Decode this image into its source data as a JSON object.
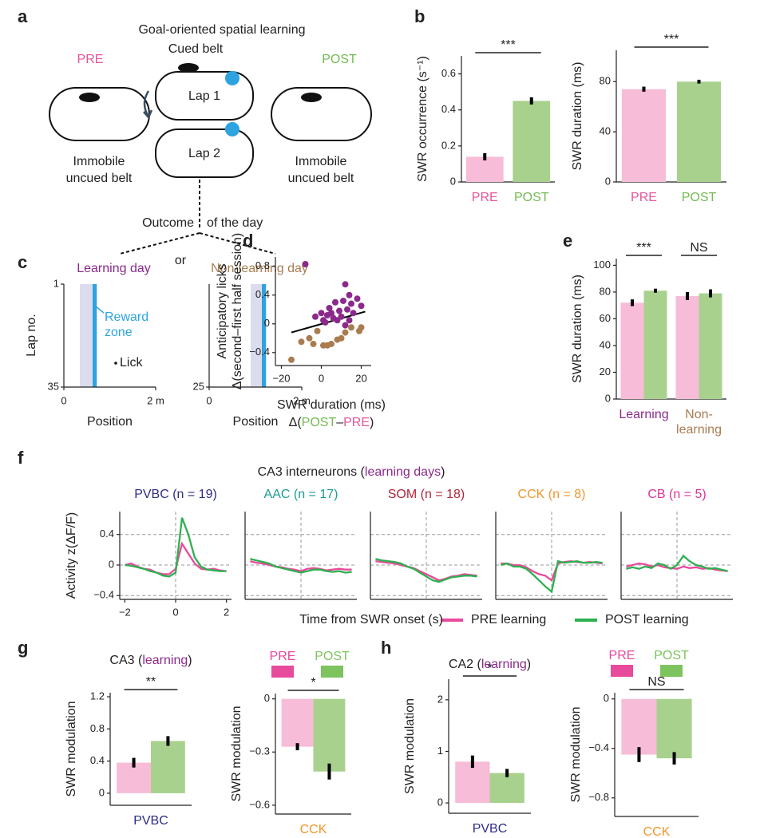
{
  "panel_labels": [
    "a",
    "b",
    "c",
    "d",
    "e",
    "f",
    "g",
    "h"
  ],
  "schematic": {
    "title": "Goal-oriented spatial learning",
    "pre": "PRE",
    "post": "POST",
    "cued_belt": "Cued belt",
    "lap1": "Lap 1",
    "lap2": "Lap 2",
    "pre_belt": [
      "Immobile",
      "uncued belt"
    ],
    "post_belt": [
      "Immobile",
      "uncued belt"
    ],
    "outcome": "Outcome",
    "of_the_day": "of the day",
    "or": "or"
  },
  "raster": {
    "ylabel": "Lap no.",
    "reward_zone": [
      "Reward",
      "zone"
    ],
    "lick": "Lick",
    "learning": {
      "title": "Learning day",
      "ylim": [
        1,
        35
      ],
      "yticks": [
        1,
        35
      ],
      "xlim": [
        0,
        2
      ],
      "xticks": [
        0,
        {
          "value": 2,
          "label": "2 m"
        }
      ],
      "xlabel": "Position"
    },
    "nonlearning": {
      "title": "Non-learning day",
      "ylim": [
        1,
        25
      ],
      "yticks": [
        25
      ],
      "xlim": [
        0,
        2
      ],
      "xticks": [
        0,
        {
          "value": 2,
          "label": "2 m"
        }
      ],
      "xlabel": "Position"
    }
  },
  "panel_f": {
    "title_parts": [
      "CA3 interneurons (",
      "learning days",
      ")"
    ],
    "title_colors": [
      "#222",
      "#8b2a8b",
      "#222"
    ],
    "xlabel": "Time from SWR onset (s)"
  },
  "chart_data": [
    {
      "type": "bar",
      "ylabel": "SWR occurrence (s⁻¹)",
      "categories": [
        "PRE",
        "POST"
      ],
      "values": [
        0.14,
        0.45
      ],
      "errors": [
        0.02,
        0.02
      ],
      "colors": [
        "#f7bcd7",
        "#a9d18e"
      ],
      "label_colors": [
        "#e6559b",
        "#72bb53"
      ],
      "ylim": [
        0,
        0.7
      ],
      "yticks": [
        0,
        0.2,
        0.4,
        0.6
      ],
      "significance": "***"
    },
    {
      "type": "bar",
      "ylabel": "SWR duration (ms)",
      "categories": [
        "PRE",
        "POST"
      ],
      "values": [
        74,
        80
      ],
      "errors": [
        2,
        1.5
      ],
      "colors": [
        "#f7bcd7",
        "#a9d18e"
      ],
      "label_colors": [
        "#e6559b",
        "#72bb53"
      ],
      "ylim": [
        0,
        105
      ],
      "yticks": [
        0,
        40,
        80
      ],
      "significance": "***"
    },
    {
      "type": "scatter",
      "ylabel": [
        "Anticipatory licks",
        "Δ(second–first half session)"
      ],
      "xlabel": "SWR duration (ms)",
      "xlabel_parts": [
        "Δ(",
        "POST",
        "–",
        "PRE",
        ")"
      ],
      "xlabel_colors": [
        "#222",
        "#72bb53",
        "#222",
        "#e6559b",
        "#222"
      ],
      "xlim": [
        -23,
        25
      ],
      "xticks": [
        {
          "value": -20,
          "label": "−20"
        },
        0,
        20
      ],
      "ylim": [
        -0.58,
        0.93
      ],
      "yticks": [
        {
          "value": -0.4,
          "label": "−0.4"
        },
        0,
        0.4,
        0.8
      ],
      "series": [
        {
          "color": "#8b2a8b",
          "x": [
            -8,
            -3,
            0,
            1,
            2,
            3,
            4,
            5,
            6,
            7,
            8,
            9,
            10,
            11,
            12,
            13,
            14,
            15,
            16,
            18,
            12,
            14,
            20
          ],
          "values": [
            0.83,
            0.1,
            0.15,
            0.05,
            0.02,
            0.12,
            0.22,
            0.15,
            0.08,
            0.3,
            0.05,
            0.18,
            0.1,
            0.32,
            0.55,
            0.2,
            0.4,
            0.28,
            0.15,
            0.35,
            -0.02,
            0.05,
            0.25
          ]
        },
        {
          "color": "#a97c50",
          "x": [
            -15,
            -10,
            -6,
            -4,
            -2,
            1,
            3,
            5,
            8,
            10,
            12,
            15,
            19,
            20
          ],
          "values": [
            -0.5,
            -0.25,
            -0.2,
            -0.28,
            -0.1,
            -0.3,
            -0.3,
            -0.28,
            -0.22,
            -0.2,
            -0.12,
            -0.05,
            -0.1,
            -0.05
          ]
        }
      ],
      "fit": {
        "x": [
          -15,
          22
        ],
        "y": [
          -0.12,
          0.17
        ]
      }
    },
    {
      "type": "bar",
      "ylabel": "SWR duration (ms)",
      "categories": [
        [
          "Learning"
        ],
        [
          "Non-",
          "learning"
        ]
      ],
      "label_colors": [
        "#8b2a8b",
        "#a97c50"
      ],
      "series": [
        {
          "color": "#f7bcd7",
          "values": [
            72,
            77
          ],
          "errors": [
            2.5,
            3
          ]
        },
        {
          "color": "#a9d18e",
          "values": [
            81,
            79
          ],
          "errors": [
            1.5,
            3
          ]
        }
      ],
      "ylim": [
        0,
        105
      ],
      "yticks": [
        0,
        20,
        40,
        60,
        80,
        100
      ],
      "significance": [
        "***",
        "NS"
      ]
    },
    {
      "type": "line",
      "title": "PVBC (n = 19)",
      "title_color": "#2b2c86",
      "ylabel": "Activity z(ΔF/F)",
      "x": [
        -2,
        -1.75,
        -1.5,
        -1.25,
        -1,
        -0.75,
        -0.5,
        -0.25,
        0,
        0.25,
        0.5,
        0.75,
        1,
        1.25,
        1.5,
        1.75,
        2
      ],
      "xlim": [
        -2.2,
        2.2
      ],
      "xticks": [
        {
          "value": -2,
          "label": "−2"
        },
        0,
        2
      ],
      "ylim": [
        -0.45,
        0.7
      ],
      "yticks": [
        {
          "value": -0.4,
          "label": "−0.4"
        },
        0,
        0.4
      ],
      "ytick_labels": true,
      "grid": true,
      "vline": 0,
      "legend": true,
      "series": [
        {
          "name": "PRE learning",
          "color": "#e84a9c",
          "values": [
            0,
            0.02,
            -0.02,
            -0.05,
            -0.06,
            -0.1,
            -0.12,
            -0.12,
            -0.05,
            0.28,
            0.15,
            0.02,
            -0.05,
            -0.06,
            -0.05,
            -0.07,
            -0.08
          ]
        },
        {
          "name": "POST learning",
          "color": "#2eb04f",
          "values": [
            0,
            -0.01,
            -0.03,
            -0.05,
            -0.08,
            -0.1,
            -0.14,
            -0.15,
            -0.1,
            0.62,
            0.4,
            0.1,
            -0.02,
            -0.06,
            -0.07,
            -0.08,
            -0.08
          ]
        }
      ]
    },
    {
      "type": "line",
      "title": "AAC (n = 17)",
      "title_color": "#1a9e8f",
      "x": [
        -2,
        -1.75,
        -1.5,
        -1.25,
        -1,
        -0.75,
        -0.5,
        -0.25,
        0,
        0.25,
        0.5,
        0.75,
        1,
        1.25,
        1.5,
        1.75,
        2
      ],
      "xlim": [
        -2.2,
        2.2
      ],
      "ylim": [
        -0.45,
        0.7
      ],
      "yticks": [
        -0.4,
        0,
        0.4
      ],
      "grid": true,
      "vline": 0,
      "series": [
        {
          "color": "#e84a9c",
          "values": [
            0.05,
            0.03,
            0.02,
            0,
            -0.02,
            -0.03,
            -0.05,
            -0.06,
            -0.08,
            -0.05,
            -0.04,
            -0.05,
            -0.07,
            -0.06,
            -0.05,
            -0.06,
            -0.06
          ]
        },
        {
          "color": "#2eb04f",
          "values": [
            0.08,
            0.06,
            0.04,
            0.02,
            -0.02,
            -0.04,
            -0.06,
            -0.08,
            -0.1,
            -0.08,
            -0.06,
            -0.06,
            -0.08,
            -0.09,
            -0.08,
            -0.1,
            -0.09
          ]
        }
      ]
    },
    {
      "type": "line",
      "title": "SOM (n = 18)",
      "title_color": "#b3243a",
      "x": [
        -2,
        -1.75,
        -1.5,
        -1.25,
        -1,
        -0.75,
        -0.5,
        -0.25,
        0,
        0.25,
        0.5,
        0.75,
        1,
        1.25,
        1.5,
        1.75,
        2
      ],
      "xlim": [
        -2.2,
        2.2
      ],
      "ylim": [
        -0.45,
        0.7
      ],
      "yticks": [
        -0.4,
        0,
        0.4
      ],
      "grid": true,
      "vline": 0,
      "series": [
        {
          "color": "#e84a9c",
          "values": [
            0.05,
            0.04,
            0.03,
            0.02,
            0,
            -0.02,
            -0.04,
            -0.08,
            -0.12,
            -0.16,
            -0.2,
            -0.18,
            -0.15,
            -0.14,
            -0.12,
            -0.13,
            -0.14
          ]
        },
        {
          "color": "#2eb04f",
          "values": [
            0.08,
            0.06,
            0.05,
            0.04,
            0.02,
            -0.02,
            -0.05,
            -0.1,
            -0.15,
            -0.2,
            -0.22,
            -0.19,
            -0.16,
            -0.15,
            -0.14,
            -0.14,
            -0.15
          ]
        }
      ]
    },
    {
      "type": "line",
      "title": "CCK (n = 8)",
      "title_color": "#f0962c",
      "x": [
        -2,
        -1.75,
        -1.5,
        -1.25,
        -1,
        -0.75,
        -0.5,
        -0.25,
        0,
        0.25,
        0.5,
        0.75,
        1,
        1.25,
        1.5,
        1.75,
        2
      ],
      "xlim": [
        -2.2,
        2.2
      ],
      "ylim": [
        -0.45,
        0.7
      ],
      "yticks": [
        -0.4,
        0,
        0.4
      ],
      "grid": true,
      "vline": 0,
      "series": [
        {
          "color": "#e84a9c",
          "values": [
            0.02,
            0.02,
            0,
            0,
            -0.03,
            -0.08,
            -0.12,
            -0.14,
            -0.2,
            0.02,
            0.04,
            0.05,
            0.04,
            0.03,
            0.04,
            0.03,
            0.02
          ]
        },
        {
          "color": "#2eb04f",
          "values": [
            0,
            0.02,
            -0.02,
            -0.02,
            -0.05,
            -0.12,
            -0.2,
            -0.28,
            -0.35,
            0.05,
            0.03,
            0.04,
            0.05,
            0.03,
            0.03,
            0.04,
            0.03
          ]
        }
      ]
    },
    {
      "type": "line",
      "title": "CB (n = 5)",
      "title_color": "#e0339a",
      "x": [
        -2,
        -1.75,
        -1.5,
        -1.25,
        -1,
        -0.75,
        -0.5,
        -0.25,
        0,
        0.25,
        0.5,
        0.75,
        1,
        1.25,
        1.5,
        1.75,
        2
      ],
      "xlim": [
        -2.2,
        2.2
      ],
      "ylim": [
        -0.45,
        0.7
      ],
      "yticks": [
        -0.4,
        0,
        0.4
      ],
      "grid": true,
      "vline": 0,
      "series": [
        {
          "color": "#e84a9c",
          "values": [
            -0.02,
            0,
            0.02,
            0.01,
            -0.02,
            0,
            -0.03,
            -0.04,
            -0.05,
            -0.02,
            -0.04,
            -0.03,
            -0.05,
            -0.04,
            -0.06,
            -0.07,
            -0.08
          ]
        },
        {
          "color": "#2eb04f",
          "values": [
            -0.05,
            -0.03,
            -0.05,
            -0.02,
            -0.04,
            0.02,
            0,
            -0.05,
            0,
            0.12,
            0.05,
            0,
            -0.02,
            -0.05,
            -0.04,
            -0.06,
            -0.08
          ]
        }
      ]
    },
    {
      "type": "bar",
      "title_parts": [
        "CA3 (",
        "learning",
        ")"
      ],
      "title_colors": [
        "#222",
        "#8b2a8b",
        "#222"
      ],
      "ylabel": "SWR modulation",
      "categories": [
        "PVBC"
      ],
      "label_colors": [
        "#2b2c86"
      ],
      "series": [
        {
          "color": "#f7bcd7",
          "values": [
            0.38
          ],
          "errors": [
            0.06
          ]
        },
        {
          "color": "#a9d18e",
          "values": [
            0.65
          ],
          "errors": [
            0.06
          ]
        }
      ],
      "ylim": [
        -0.15,
        1.25
      ],
      "yticks": [
        0,
        0.4,
        0.8,
        1.2
      ],
      "significance": "**"
    },
    {
      "type": "bar",
      "ylabel": "SWR modulation",
      "categories": [
        "CCK"
      ],
      "label_colors": [
        "#f0962c"
      ],
      "legend": true,
      "legend_colors": [
        "#e84a9c",
        "#7dc35e"
      ],
      "series": [
        {
          "name": "PRE",
          "color": "#f7bcd7",
          "values": [
            -0.27
          ],
          "errors": [
            0.02
          ]
        },
        {
          "name": "POST",
          "color": "#a9d18e",
          "values": [
            -0.41
          ],
          "errors": [
            0.045
          ]
        }
      ],
      "ylim": [
        -0.65,
        0.03
      ],
      "yticks": [
        0,
        {
          "value": -0.3,
          "label": "−0.3"
        },
        {
          "value": -0.6,
          "label": "−0.6"
        }
      ],
      "significance": "*"
    },
    {
      "type": "bar",
      "title_parts": [
        "CA2 (",
        "learning",
        ")"
      ],
      "title_colors": [
        "#222",
        "#8b2a8b",
        "#222"
      ],
      "ylabel": "SWR modulation",
      "categories": [
        "PVBC"
      ],
      "label_colors": [
        "#2b2c86"
      ],
      "series": [
        {
          "color": "#f7bcd7",
          "values": [
            0.8
          ],
          "errors": [
            0.12
          ]
        },
        {
          "color": "#a9d18e",
          "values": [
            0.58
          ],
          "errors": [
            0.08
          ]
        }
      ],
      "ylim": [
        -0.2,
        2.4
      ],
      "yticks": [
        0,
        1,
        2
      ],
      "significance": "*"
    },
    {
      "type": "bar",
      "ylabel": "SWR modulation",
      "categories": [
        "CCK"
      ],
      "label_colors": [
        "#f0962c"
      ],
      "legend": true,
      "legend_colors": [
        "#e84a9c",
        "#7dc35e"
      ],
      "series": [
        {
          "name": "PRE",
          "color": "#f7bcd7",
          "values": [
            -0.45
          ],
          "errors": [
            0.06
          ]
        },
        {
          "name": "POST",
          "color": "#a9d18e",
          "values": [
            -0.48
          ],
          "errors": [
            0.05
          ]
        }
      ],
      "ylim": [
        -0.95,
        0.05
      ],
      "yticks": [
        0,
        {
          "value": -0.4,
          "label": "−0.4"
        },
        {
          "value": -0.8,
          "label": "−0.8"
        }
      ],
      "significance": "NS"
    }
  ]
}
